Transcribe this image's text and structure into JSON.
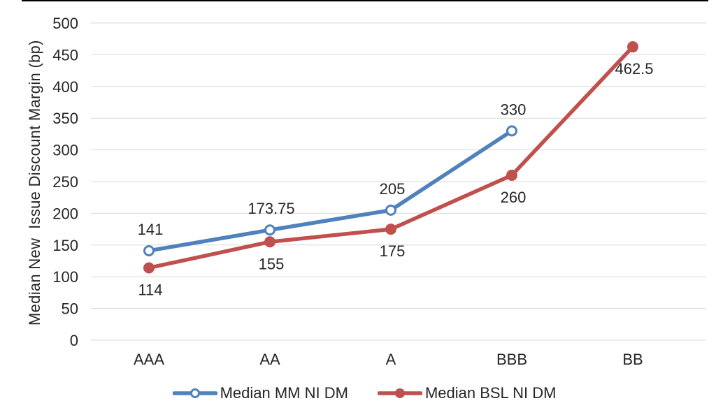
{
  "chart_data": {
    "type": "line",
    "title": "",
    "categories": [
      "AAA",
      "AA",
      "A",
      "BBB",
      "BB"
    ],
    "series": [
      {
        "name": "Median MM NI DM",
        "color": "#4F81BD",
        "marker": "open-circle",
        "values": [
          141,
          173.75,
          205,
          330,
          null
        ],
        "data_labels": [
          "141",
          "173.75",
          "205",
          "330",
          null
        ],
        "label_position": "above"
      },
      {
        "name": "Median BSL NI DM",
        "color": "#C0504D",
        "marker": "filled-circle",
        "values": [
          114,
          155,
          175,
          260,
          462.5
        ],
        "data_labels": [
          "114",
          "155",
          "175",
          "260",
          "462.5"
        ],
        "label_position": "below"
      }
    ],
    "xlabel": "",
    "ylabel": "Median New  Issue Discount Margin (bp)",
    "ylim": [
      0,
      500
    ],
    "yticks": [
      0,
      50,
      100,
      150,
      200,
      250,
      300,
      350,
      400,
      450,
      500
    ],
    "grid": "horizontal",
    "gridline_color": "#D9D9D9",
    "legend_position": "bottom",
    "text_color": "#262626",
    "background_color": "#FFFFFF"
  }
}
